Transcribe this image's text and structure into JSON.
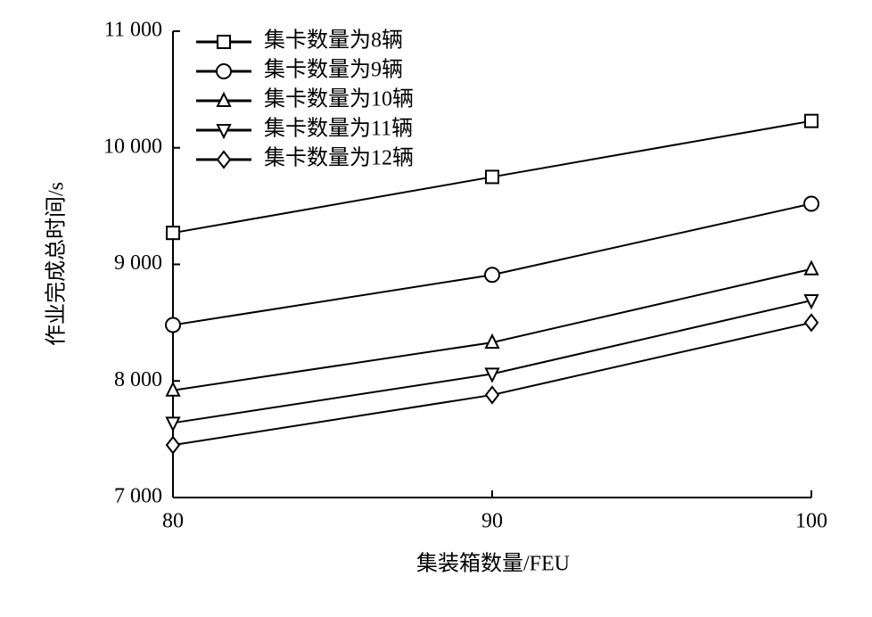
{
  "chart_data": {
    "type": "line",
    "x_label": "集装箱数量/FEU",
    "y_label": "作业完成总时间/s",
    "x": [
      80,
      90,
      100
    ],
    "xlim": [
      80,
      100
    ],
    "xticks": [
      80,
      90,
      100
    ],
    "ylim": [
      7000,
      11000
    ],
    "yticks": [
      {
        "value": 7000,
        "label": "7 000"
      },
      {
        "value": 8000,
        "label": "8 000"
      },
      {
        "value": 9000,
        "label": "9 000"
      },
      {
        "value": 10000,
        "label": "10 000"
      },
      {
        "value": 11000,
        "label": "11 000"
      }
    ],
    "legend": "top-left",
    "series": [
      {
        "name": "集卡数量为8辆",
        "color": "#000000",
        "marker": "square",
        "values": [
          9270,
          9750,
          10230
        ]
      },
      {
        "name": "集卡数量为9辆",
        "color": "#000000",
        "marker": "circle",
        "values": [
          8480,
          8910,
          9520
        ]
      },
      {
        "name": "集卡数量为10辆",
        "color": "#000000",
        "marker": "triangle-up",
        "values": [
          7920,
          8330,
          8960
        ]
      },
      {
        "name": "集卡数量为11辆",
        "color": "#000000",
        "marker": "triangle-down",
        "values": [
          7640,
          8060,
          8690
        ]
      },
      {
        "name": "集卡数量为12辆",
        "color": "#000000",
        "marker": "diamond",
        "values": [
          7450,
          7880,
          8500
        ]
      }
    ]
  }
}
